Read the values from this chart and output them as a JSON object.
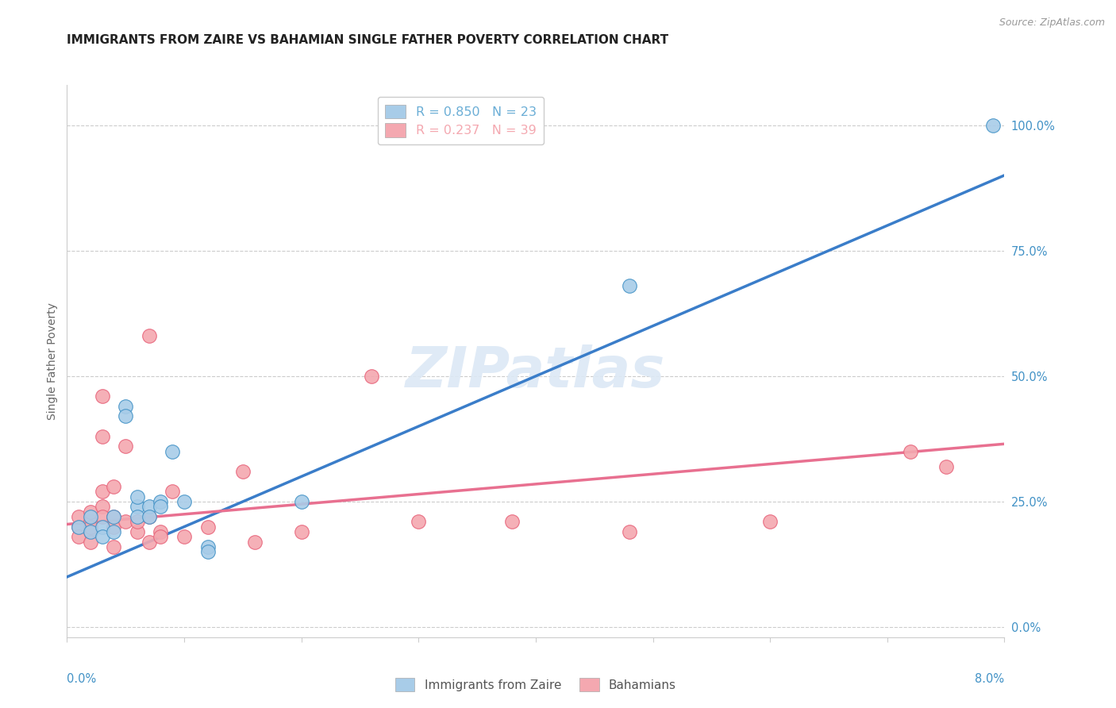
{
  "title": "IMMIGRANTS FROM ZAIRE VS BAHAMIAN SINGLE FATHER POVERTY CORRELATION CHART",
  "source": "Source: ZipAtlas.com",
  "ylabel": "Single Father Poverty",
  "right_yticks": [
    "100.0%",
    "75.0%",
    "50.0%",
    "25.0%",
    "0.0%"
  ],
  "right_ytick_vals": [
    1.0,
    0.75,
    0.5,
    0.25,
    0.0
  ],
  "xlim": [
    0.0,
    0.08
  ],
  "ylim": [
    -0.02,
    1.08
  ],
  "legend_entries": [
    {
      "label": "R = 0.850   N = 23",
      "color": "#6baed6"
    },
    {
      "label": "R = 0.237   N = 39",
      "color": "#f4a8b0"
    }
  ],
  "legend_bottom_entries": [
    {
      "label": "Immigrants from Zaire",
      "color": "#a8cce8"
    },
    {
      "label": "Bahamians",
      "color": "#f4a8b0"
    }
  ],
  "watermark": "ZIPatlas",
  "blue_color": "#4292c6",
  "pink_color": "#e8637a",
  "blue_scatter_color": "#a8cce8",
  "pink_scatter_color": "#f4a8b0",
  "blue_line_color": "#3a7dc9",
  "pink_line_color": "#e87090",
  "blue_scatter": [
    [
      0.001,
      0.2
    ],
    [
      0.002,
      0.19
    ],
    [
      0.002,
      0.22
    ],
    [
      0.003,
      0.2
    ],
    [
      0.003,
      0.18
    ],
    [
      0.004,
      0.19
    ],
    [
      0.004,
      0.22
    ],
    [
      0.005,
      0.44
    ],
    [
      0.005,
      0.42
    ],
    [
      0.006,
      0.24
    ],
    [
      0.006,
      0.22
    ],
    [
      0.006,
      0.26
    ],
    [
      0.007,
      0.24
    ],
    [
      0.007,
      0.22
    ],
    [
      0.008,
      0.25
    ],
    [
      0.008,
      0.24
    ],
    [
      0.009,
      0.35
    ],
    [
      0.01,
      0.25
    ],
    [
      0.012,
      0.16
    ],
    [
      0.012,
      0.15
    ],
    [
      0.02,
      0.25
    ],
    [
      0.048,
      0.68
    ],
    [
      0.079,
      1.0
    ]
  ],
  "pink_scatter": [
    [
      0.001,
      0.2
    ],
    [
      0.001,
      0.18
    ],
    [
      0.001,
      0.22
    ],
    [
      0.002,
      0.21
    ],
    [
      0.002,
      0.19
    ],
    [
      0.002,
      0.2
    ],
    [
      0.002,
      0.17
    ],
    [
      0.002,
      0.23
    ],
    [
      0.003,
      0.27
    ],
    [
      0.003,
      0.24
    ],
    [
      0.003,
      0.22
    ],
    [
      0.003,
      0.38
    ],
    [
      0.003,
      0.46
    ],
    [
      0.004,
      0.22
    ],
    [
      0.004,
      0.2
    ],
    [
      0.004,
      0.28
    ],
    [
      0.004,
      0.16
    ],
    [
      0.005,
      0.36
    ],
    [
      0.005,
      0.21
    ],
    [
      0.006,
      0.19
    ],
    [
      0.006,
      0.21
    ],
    [
      0.007,
      0.22
    ],
    [
      0.007,
      0.17
    ],
    [
      0.007,
      0.58
    ],
    [
      0.008,
      0.19
    ],
    [
      0.008,
      0.18
    ],
    [
      0.009,
      0.27
    ],
    [
      0.01,
      0.18
    ],
    [
      0.012,
      0.2
    ],
    [
      0.015,
      0.31
    ],
    [
      0.016,
      0.17
    ],
    [
      0.02,
      0.19
    ],
    [
      0.026,
      0.5
    ],
    [
      0.03,
      0.21
    ],
    [
      0.038,
      0.21
    ],
    [
      0.048,
      0.19
    ],
    [
      0.06,
      0.21
    ],
    [
      0.072,
      0.35
    ],
    [
      0.075,
      0.32
    ]
  ],
  "blue_trendline": [
    [
      0.0,
      0.1
    ],
    [
      0.08,
      0.9
    ]
  ],
  "pink_trendline": [
    [
      0.0,
      0.205
    ],
    [
      0.08,
      0.365
    ]
  ],
  "grid_color": "#cccccc",
  "title_fontsize": 11,
  "axis_label_fontsize": 10,
  "tick_fontsize": 10.5,
  "watermark_fontsize": 52,
  "watermark_color": "#dce8f5",
  "watermark_alpha": 0.9
}
